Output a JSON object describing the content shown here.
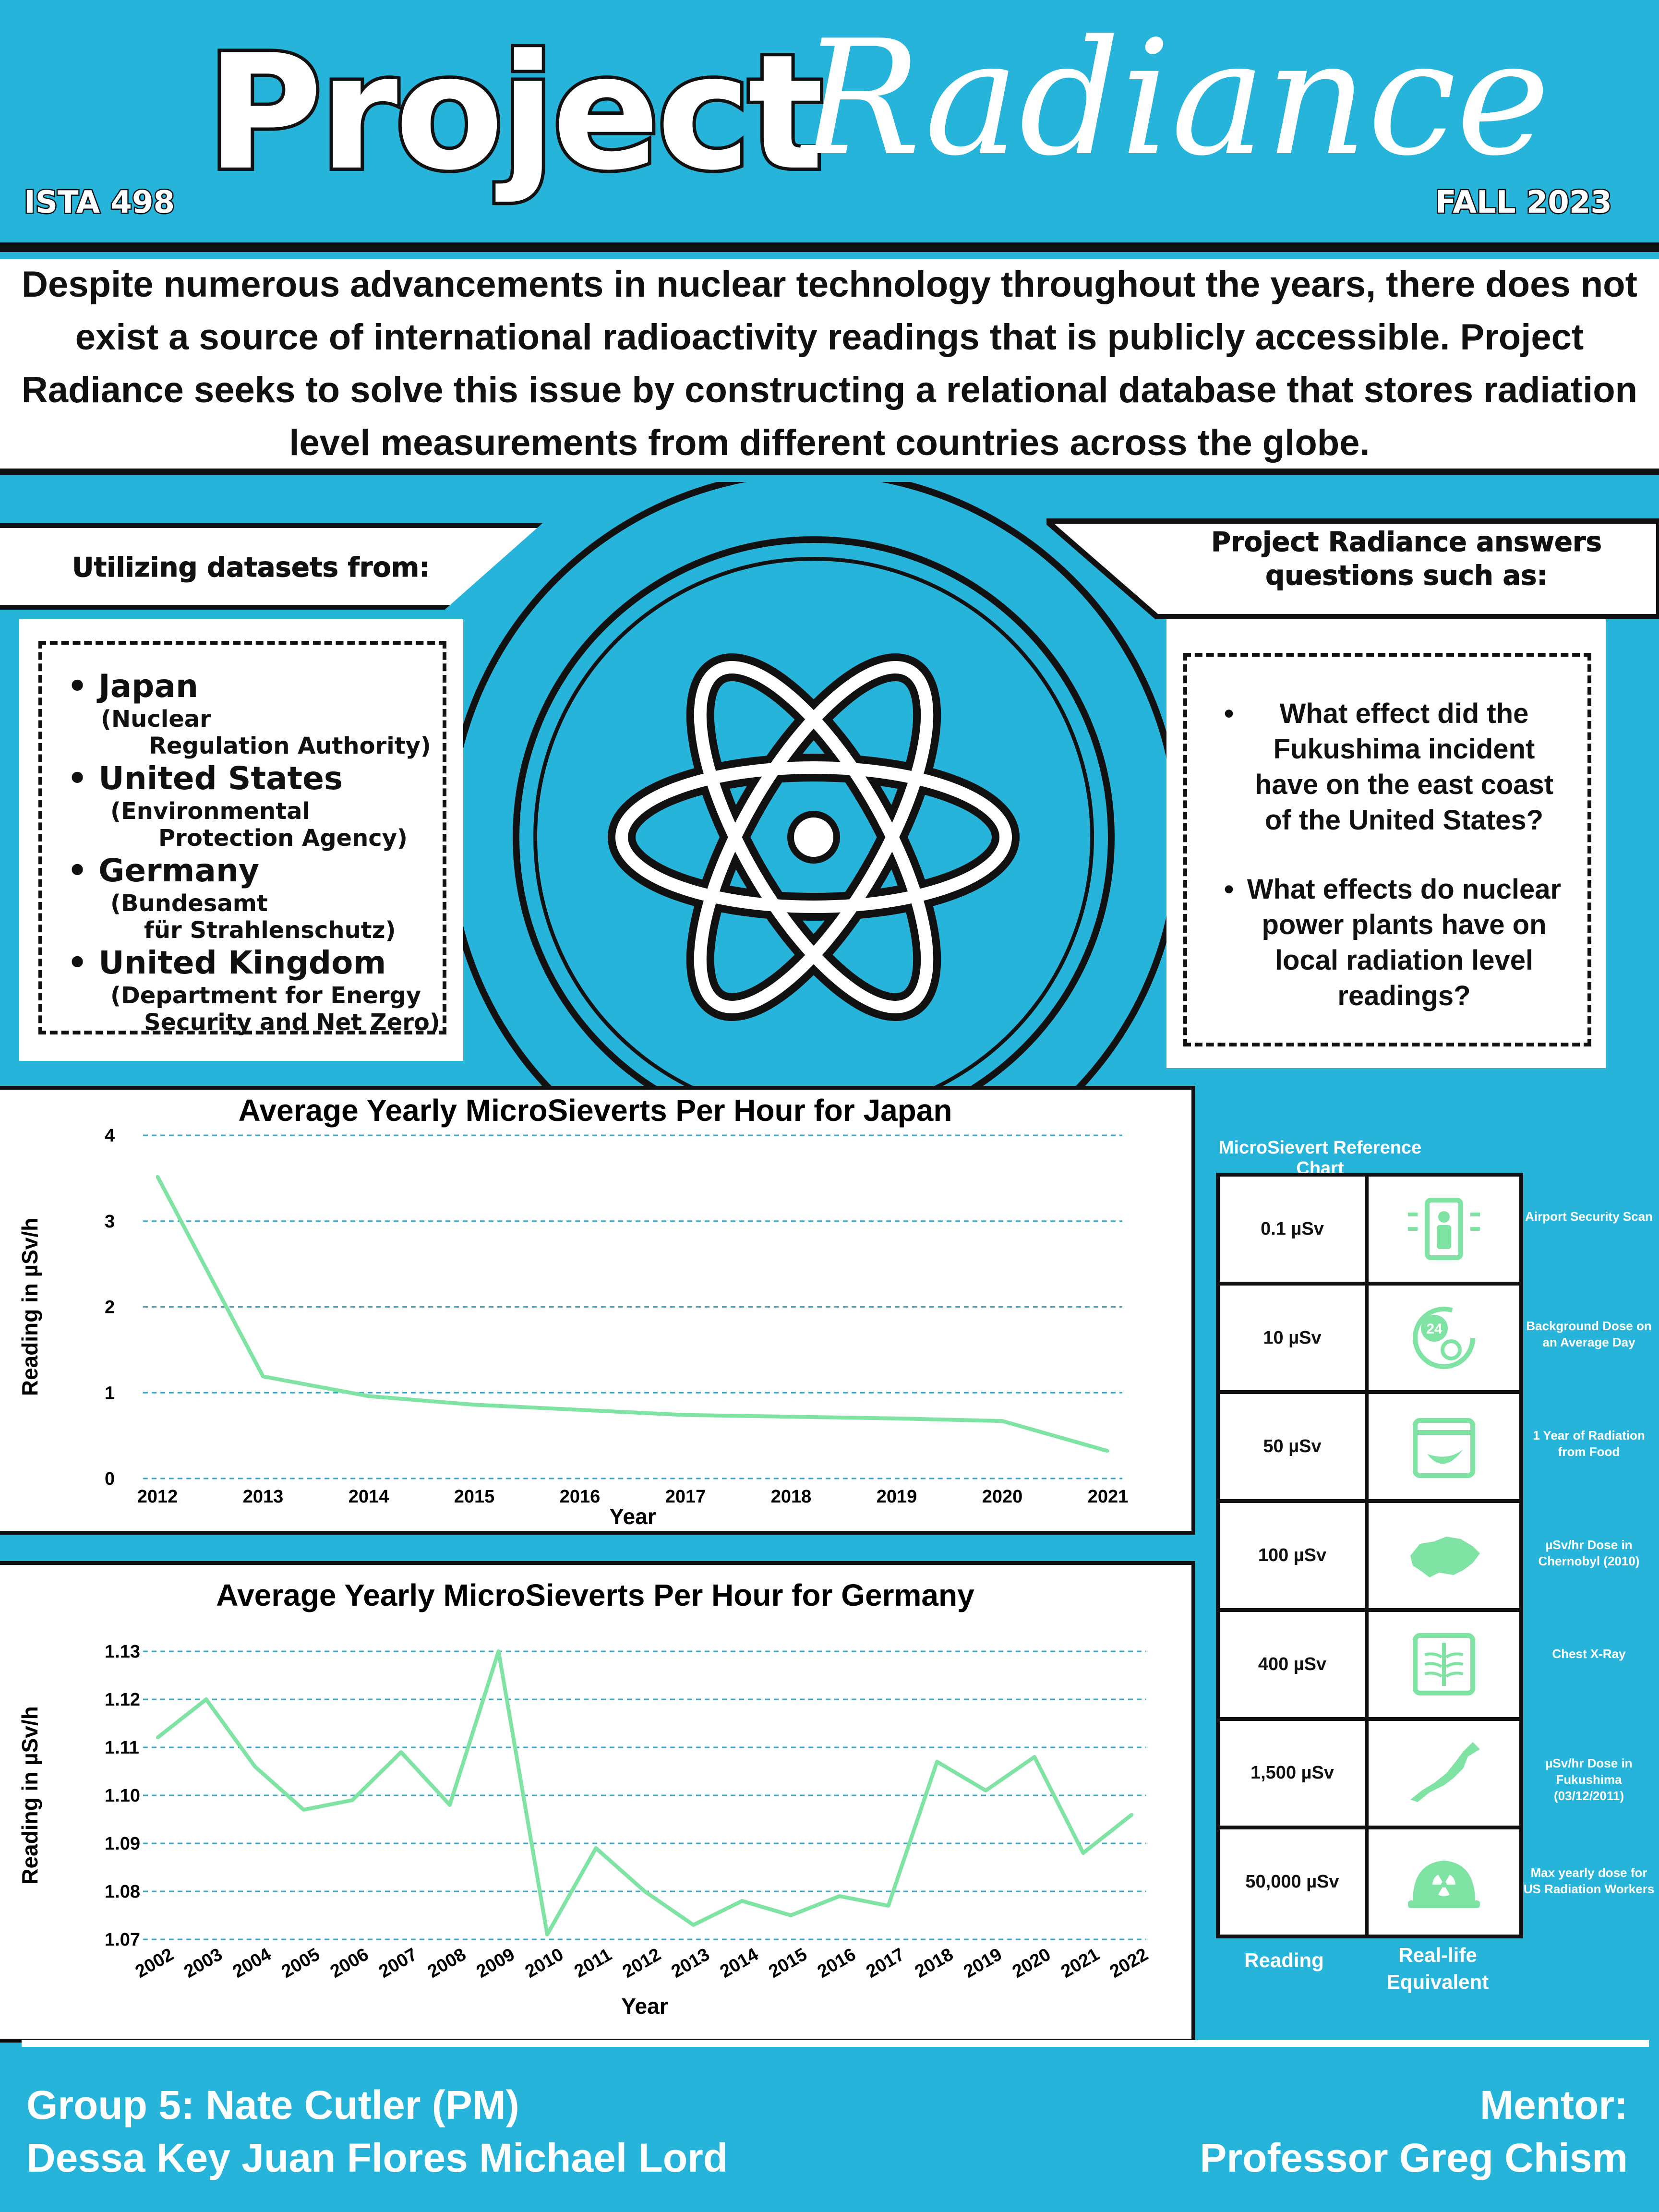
{
  "header": {
    "title_word1": "Project",
    "title_word2": "Radiance",
    "course": "ISTA 498",
    "term": "FALL 2023"
  },
  "intro": {
    "text": "Despite numerous advancements in nuclear technology throughout the years, there does not exist a source of international radioactivity readings that is publicly accessible. Project Radiance seeks to solve this issue by constructing a relational database that stores radiation level measurements from different countries across the globe."
  },
  "datasets": {
    "heading": "Utilizing datasets from:",
    "items": [
      {
        "country": "Japan",
        "agency_line1": "(Nuclear",
        "agency_line2": "Regulation Authority)"
      },
      {
        "country": "United States",
        "agency_line1": "(Environmental",
        "agency_line2": "Protection Agency)"
      },
      {
        "country": "Germany",
        "agency_line1": "(Bundesamt",
        "agency_line2": "für Strahlenschutz)"
      },
      {
        "country": "United Kingdom",
        "agency_line1": "(Department for Energy",
        "agency_line2": "Security and Net Zero)"
      }
    ]
  },
  "questions": {
    "heading_line1": "Project Radiance answers",
    "heading_line2": "questions such as:",
    "items": [
      "What effect did the Fukushima incident have on the east coast of the United States?",
      "What effects do nuclear power plants have on local radiation level readings?"
    ]
  },
  "chart_data": [
    {
      "type": "line",
      "title": "Average Yearly MicroSieverts Per Hour for Japan",
      "xlabel": "Year",
      "ylabel": "Reading in µSv/h",
      "x": [
        "2012",
        "2013",
        "2014",
        "2015",
        "2016",
        "2017",
        "2018",
        "2019",
        "2020",
        "2021"
      ],
      "series": [
        {
          "values": [
            3.52,
            1.19,
            0.96,
            0.86,
            0.8,
            0.74,
            0.72,
            0.7,
            0.67,
            0.32
          ]
        }
      ],
      "ylim": [
        0,
        4
      ],
      "yticks": [
        0,
        1,
        2,
        3,
        4
      ],
      "grid": true,
      "color": "#7fe3a3"
    },
    {
      "type": "line",
      "title": "Average Yearly MicroSieverts Per Hour for Germany",
      "xlabel": "Year",
      "ylabel": "Reading in µSv/h",
      "x": [
        "2002",
        "2003",
        "2004",
        "2005",
        "2006",
        "2007",
        "2008",
        "2009",
        "2010",
        "2011",
        "2012",
        "2013",
        "2014",
        "2015",
        "2016",
        "2017",
        "2018",
        "2019",
        "2020",
        "2021",
        "2022"
      ],
      "series": [
        {
          "values": [
            1.112,
            1.12,
            1.106,
            1.097,
            1.099,
            1.109,
            1.098,
            1.13,
            1.071,
            1.089,
            1.08,
            1.073,
            1.078,
            1.075,
            1.079,
            1.077,
            1.107,
            1.101,
            1.108,
            1.088,
            1.096
          ]
        }
      ],
      "ylim": [
        1.07,
        1.13
      ],
      "yticks": [
        "1.07",
        "1.08",
        "1.09",
        "1.10",
        "1.11",
        "1.12",
        "1.13"
      ],
      "grid": true,
      "color": "#7fe3a3"
    }
  ],
  "reference": {
    "title": "MicroSievert Reference Chart",
    "rows": [
      {
        "value": "0.1 µSv",
        "icon": "security-scanner-icon",
        "desc": "Airport Security Scan"
      },
      {
        "value": "10 µSv",
        "icon": "24-hour-radiation-icon",
        "desc": "Background Dose on an Average Day"
      },
      {
        "value": "50 µSv",
        "icon": "calendar-banana-icon",
        "desc": "1 Year of Radiation from Food"
      },
      {
        "value": "100 µSv",
        "icon": "ukraine-map-icon",
        "desc": "µSv/hr Dose in Chernobyl (2010)"
      },
      {
        "value": "400 µSv",
        "icon": "chest-xray-icon",
        "desc": "Chest X-Ray"
      },
      {
        "value": "1,500 µSv",
        "icon": "japan-map-icon",
        "desc": "µSv/hr Dose in Fukushima (03/12/2011)"
      },
      {
        "value": "50,000 µSv",
        "icon": "radiation-helmet-icon",
        "desc": "Max yearly dose for US Radiation Workers"
      }
    ],
    "col_reading": "Reading",
    "col_equiv_line1": "Real-life",
    "col_equiv_line2": "Equivalent",
    "icon_color": "#7fe3a3"
  },
  "footer": {
    "group_line1": "Group 5: Nate Cutler (PM)",
    "group_line2": "Dessa Key Juan Flores Michael Lord",
    "mentor_label": "Mentor:",
    "mentor_name": "Professor Greg Chism"
  }
}
